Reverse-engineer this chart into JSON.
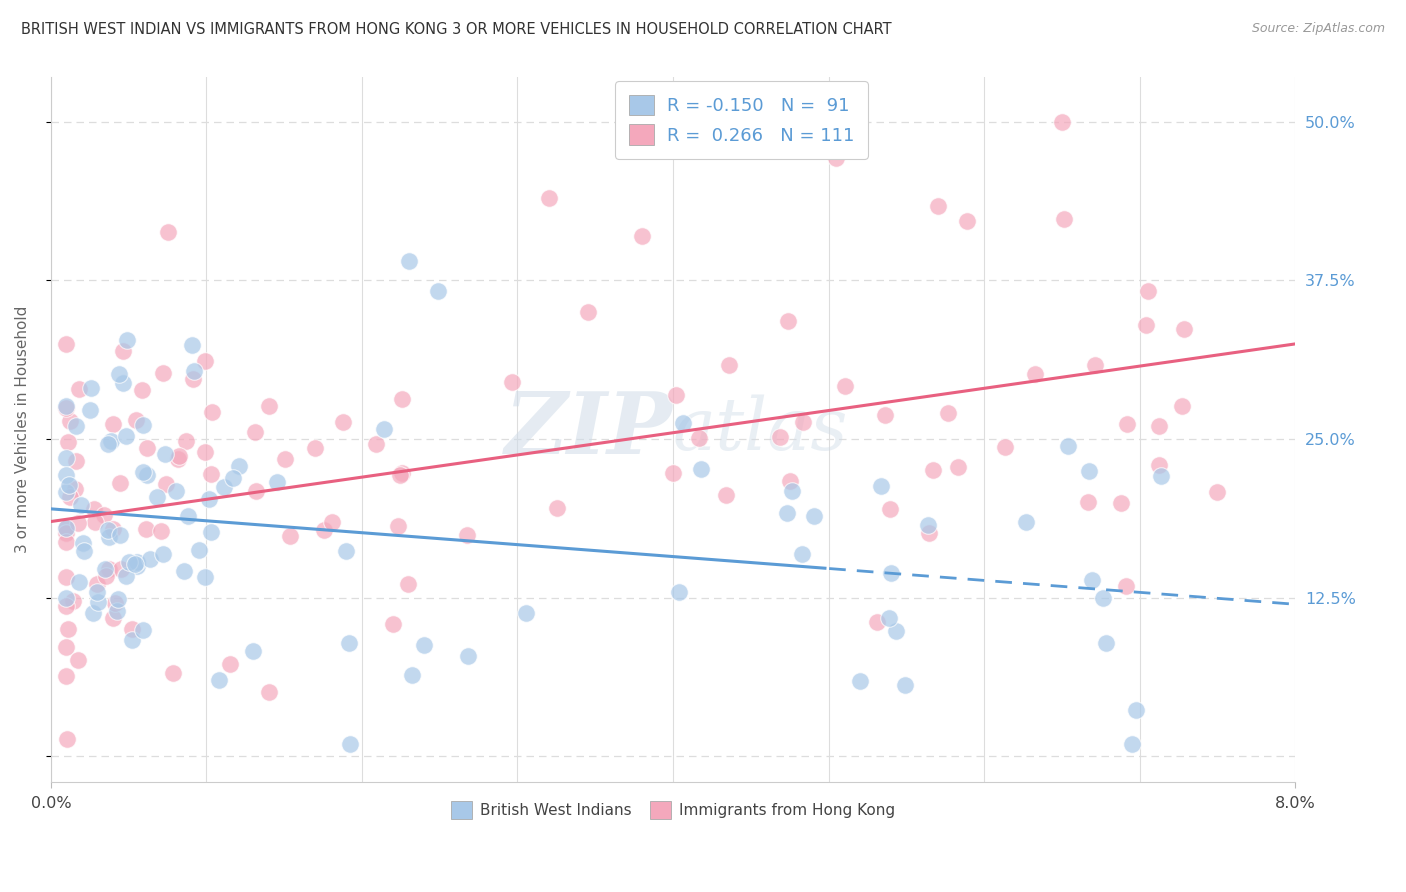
{
  "title": "BRITISH WEST INDIAN VS IMMIGRANTS FROM HONG KONG 3 OR MORE VEHICLES IN HOUSEHOLD CORRELATION CHART",
  "source": "Source: ZipAtlas.com",
  "ylabel": "3 or more Vehicles in Household",
  "xlim": [
    0.0,
    0.08
  ],
  "ylim": [
    -0.02,
    0.535
  ],
  "blue_R": -0.15,
  "blue_N": 91,
  "pink_R": 0.266,
  "pink_N": 111,
  "legend_label_blue": "British West Indians",
  "legend_label_pink": "Immigrants from Hong Kong",
  "blue_color": "#a8c8e8",
  "pink_color": "#f4a8bc",
  "blue_line_color": "#5b9bd5",
  "pink_line_color": "#e86080",
  "watermark_color": "#d0dce8",
  "background_color": "#ffffff",
  "grid_color": "#dddddd",
  "right_ytick_labels": [
    "",
    "12.5%",
    "25.0%",
    "37.5%",
    "50.0%"
  ],
  "right_ytick_values": [
    0.0,
    0.125,
    0.25,
    0.375,
    0.5
  ],
  "tick_label_color": "#5b9bd5",
  "title_color": "#333333",
  "source_color": "#999999",
  "blue_intercept": 0.195,
  "blue_slope": -0.94,
  "pink_intercept": 0.185,
  "pink_slope": 1.75
}
